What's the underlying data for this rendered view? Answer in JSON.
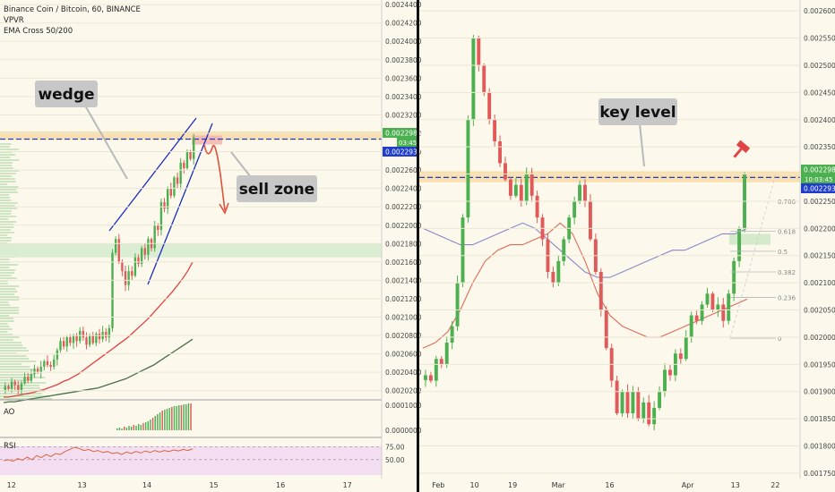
{
  "header": {
    "symbol_line": "Binance Coin / Bitcoin, 60, BINANCE",
    "indicator_1": "VPVR",
    "indicator_2": "EMA Cross 50/200"
  },
  "left_panel": {
    "price_ticks": [
      "0.0024400",
      "0.0024200",
      "0.0024000",
      "0.0023800",
      "0.0023600",
      "0.0023400",
      "0.0023200",
      "0.0023000",
      "0.0022800",
      "0.0022600",
      "0.0022400",
      "0.0022200",
      "0.0022000",
      "0.0021800",
      "0.0021600",
      "0.0021400",
      "0.0021200",
      "0.0021000",
      "0.0020800",
      "0.0020600",
      "0.0020400",
      "0.0020200"
    ],
    "price_badge_top": "0.0022985",
    "price_badge_countdown": "03:45",
    "price_badge_bottom": "0.0022937",
    "date_ticks": [
      "12",
      "13",
      "14",
      "15",
      "16",
      "17"
    ],
    "ao_label": "AO",
    "ao_ticks": [
      "0.0001000",
      "0.0000000"
    ],
    "rsi_label": "RSI",
    "rsi_ticks": [
      "75.00",
      "50.00"
    ],
    "annotation_wedge": "wedge",
    "annotation_sell": "sell zone"
  },
  "right_panel": {
    "price_ticks": [
      "0.0026000",
      "0.0025500",
      "0.0025000",
      "0.0024500",
      "0.0024000",
      "0.0023500",
      "0.0023000",
      "0.0022500",
      "0.0022000",
      "0.0021500",
      "0.0021000",
      "0.0020500",
      "0.0020000",
      "0.0019500",
      "0.0019000",
      "0.0018500",
      "0.0018000",
      "0.0017500"
    ],
    "price_badge_top": "0.0022985",
    "price_badge_countdown": "10:03:45",
    "price_badge_bottom": "0.0022937",
    "date_ticks": [
      "Feb",
      "10",
      "19",
      "Mar",
      "16",
      "Apr",
      "13",
      "22"
    ],
    "fib_levels": [
      "0.786",
      "0.618",
      "0.5",
      "0.382",
      "0.236",
      "0"
    ],
    "annotation_key": "key level"
  },
  "colors": {
    "bull": "#4caf50",
    "bear": "#e05a5a",
    "ema_fast": "#e04040",
    "ema_slow": "#4a6f4a",
    "ema_slow_right": "#8a86c8",
    "dashed": "#1f3dc8",
    "wedge_lines": "#1a2dc0",
    "arrow": "#e0503c"
  },
  "chart_data": [
    {
      "type": "candlestick",
      "title": "Binance Coin / Bitcoin, 60, BINANCE",
      "x_ticks": [
        "12",
        "13",
        "14",
        "15",
        "16",
        "17"
      ],
      "ylim": [
        0.00201,
        0.002445
      ],
      "price_ticks": [
        0.00244,
        0.00242,
        0.0024,
        0.00238,
        0.00236,
        0.00234,
        0.00232,
        0.0023,
        0.00228,
        0.00226,
        0.00224,
        0.00222,
        0.0022,
        0.00218,
        0.00216,
        0.00214,
        0.00212,
        0.0021,
        0.00208,
        0.00206,
        0.00204,
        0.00202
      ],
      "close": [
        0.002025,
        0.002022,
        0.00203,
        0.002026,
        0.00202,
        0.002028,
        0.002035,
        0.002031,
        0.002038,
        0.002044,
        0.00204,
        0.002046,
        0.002052,
        0.002048,
        0.002046,
        0.002054,
        0.002064,
        0.002074,
        0.002068,
        0.002078,
        0.002072,
        0.00208,
        0.002074,
        0.002085,
        0.002078,
        0.00207,
        0.00208,
        0.002072,
        0.002082,
        0.002076,
        0.002084,
        0.002078,
        0.002088,
        0.00217,
        0.002185,
        0.00216,
        0.00215,
        0.002135,
        0.00215,
        0.002145,
        0.002165,
        0.002158,
        0.002175,
        0.002168,
        0.002185,
        0.002175,
        0.0022,
        0.002195,
        0.002225,
        0.002218,
        0.00224,
        0.002232,
        0.002252,
        0.002245,
        0.002268,
        0.002262,
        0.00228,
        0.002272,
        0.002295
      ],
      "current_price": 0.0022985,
      "dashed_level": 0.0022937,
      "resistance_zone": [
        0.002293,
        0.002302
      ],
      "support_zone": [
        0.002165,
        0.00218
      ],
      "ema_fast": [
        0.002013,
        0.002013,
        0.002014,
        0.002015,
        0.002016,
        0.002017,
        0.002018,
        0.00202,
        0.002021,
        0.002023,
        0.002025,
        0.002027,
        0.00203,
        0.002032,
        0.002035,
        0.002038,
        0.002042,
        0.002046,
        0.00205,
        0.002054,
        0.002058,
        0.002062,
        0.002066,
        0.00207,
        0.002074,
        0.002078,
        0.002083,
        0.002088,
        0.002093,
        0.002098,
        0.002104,
        0.00211,
        0.002116,
        0.002122,
        0.002128,
        0.002135,
        0.002142,
        0.00215,
        0.00216
      ],
      "ema_slow": [
        0.002007,
        0.002008,
        0.002008,
        0.002009,
        0.00201,
        0.002011,
        0.002012,
        0.002013,
        0.002014,
        0.002015,
        0.002016,
        0.002017,
        0.002018,
        0.002019,
        0.00202,
        0.002021,
        0.002022,
        0.002023,
        0.002025,
        0.002027,
        0.002029,
        0.002031,
        0.002033,
        0.002036,
        0.002039,
        0.002042,
        0.002045,
        0.002048,
        0.002052,
        0.002056,
        0.00206,
        0.002064,
        0.002068,
        0.002072,
        0.002076
      ],
      "ao_hist": [
        0.02,
        0.03,
        0.02,
        0.04,
        0.03,
        0.05,
        0.04,
        0.06,
        0.05,
        0.07,
        0.06,
        0.08,
        0.09,
        0.1,
        0.12,
        0.14,
        0.16,
        0.18,
        0.2,
        0.22,
        0.23,
        0.24,
        0.25,
        0.26,
        0.27,
        0.27,
        0.28,
        0.28,
        0.29,
        0.29,
        0.3,
        0.3
      ],
      "rsi": [
        48,
        50,
        47,
        52,
        49,
        55,
        50,
        58,
        54,
        60,
        56,
        62,
        60,
        66,
        70,
        74,
        72,
        68,
        70,
        66,
        68,
        64,
        66,
        62,
        64,
        60,
        65,
        62,
        66,
        63,
        67,
        64,
        68,
        65,
        68,
        66,
        69,
        67,
        70,
        68,
        71
      ]
    },
    {
      "type": "candlestick",
      "x_ticks": [
        "Feb",
        "10",
        "19",
        "Mar",
        "16",
        "Apr",
        "13",
        "22"
      ],
      "ylim": [
        0.00174,
        0.00262
      ],
      "price_ticks": [
        0.0026,
        0.00255,
        0.0025,
        0.00245,
        0.0024,
        0.00235,
        0.0023,
        0.00225,
        0.0022,
        0.00215,
        0.0021,
        0.00205,
        0.002,
        0.00195,
        0.0019,
        0.00185,
        0.0018,
        0.00175
      ],
      "close": [
        0.00193,
        0.00192,
        0.00196,
        0.00195,
        0.00199,
        0.00202,
        0.0021,
        0.00222,
        0.0024,
        0.00255,
        0.0025,
        0.00245,
        0.0024,
        0.00236,
        0.00232,
        0.00229,
        0.00226,
        0.00228,
        0.00225,
        0.0023,
        0.00226,
        0.00222,
        0.00218,
        0.00212,
        0.0021,
        0.00214,
        0.00218,
        0.00222,
        0.00225,
        0.00228,
        0.00225,
        0.00218,
        0.00212,
        0.00205,
        0.00198,
        0.00192,
        0.00186,
        0.0019,
        0.00186,
        0.0019,
        0.00185,
        0.00188,
        0.00184,
        0.00187,
        0.0019,
        0.00194,
        0.00193,
        0.00197,
        0.00196,
        0.002,
        0.00204,
        0.00203,
        0.00206,
        0.00208,
        0.00205,
        0.00206,
        0.00203,
        0.00208,
        0.00214,
        0.0022,
        0.0023
      ],
      "current_price": 0.0022985,
      "dashed_level": 0.0022937,
      "fib_retracement": {
        "0": 0.001998,
        "0.236": 0.002073,
        "0.382": 0.00212,
        "0.5": 0.002158,
        "0.618": 0.002195,
        "0.786": 0.00225
      }
    }
  ]
}
